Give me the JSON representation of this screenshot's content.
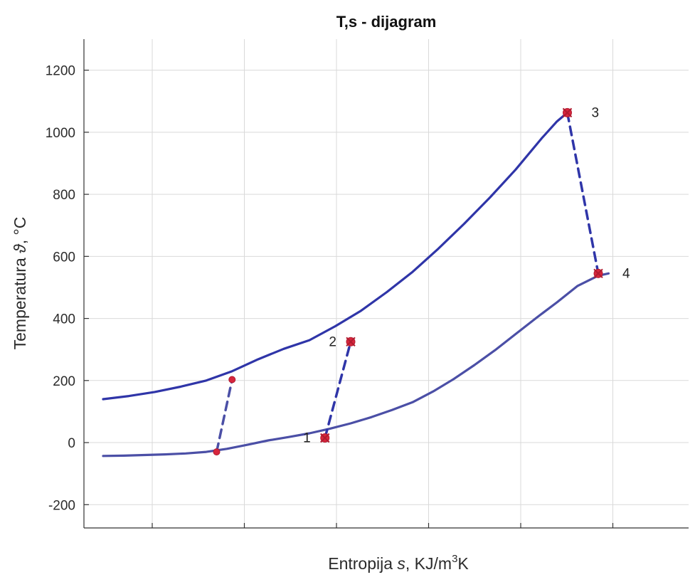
{
  "chart_data": {
    "type": "line",
    "title": "T,s - dijagram",
    "xlabel": {
      "prefix": "Entropija ",
      "symbol": "s",
      "unit": ", KJ/m",
      "sup": "3",
      "suffix": "K"
    },
    "ylabel": {
      "prefix": "Temperatura ",
      "symbol": "ϑ",
      "unit": ", °C"
    },
    "ylim": [
      -275,
      1300
    ],
    "yticks": [
      -200,
      0,
      200,
      400,
      600,
      800,
      1000,
      1200
    ],
    "xlim": [
      0,
      1
    ],
    "xticks_count": 7,
    "grid": true,
    "series": [
      {
        "role": "lower-isobar",
        "color": "#4b4fa6",
        "style": "solid",
        "x": [
          0,
          0.04,
          0.08,
          0.12,
          0.16,
          0.2,
          0.24,
          0.28,
          0.32,
          0.36,
          0.4,
          0.44,
          0.48,
          0.52,
          0.56,
          0.6,
          0.64,
          0.68,
          0.72,
          0.76,
          0.8,
          0.84,
          0.88,
          0.92,
          0.96,
          0.98
        ],
        "y": [
          -43,
          -42,
          -40,
          -38,
          -35,
          -30,
          -20,
          -7,
          7,
          18,
          30,
          45,
          62,
          82,
          105,
          130,
          165,
          205,
          250,
          298,
          350,
          402,
          452,
          505,
          538,
          545
        ]
      },
      {
        "role": "upper-isobar",
        "color": "#2f35a8",
        "style": "solid",
        "x": [
          0,
          0.05,
          0.1,
          0.15,
          0.2,
          0.25,
          0.3,
          0.35,
          0.4,
          0.45,
          0.5,
          0.55,
          0.6,
          0.65,
          0.7,
          0.75,
          0.8,
          0.85,
          0.88,
          0.9
        ],
        "y": [
          140,
          150,
          163,
          180,
          200,
          230,
          268,
          302,
          330,
          375,
          425,
          485,
          550,
          625,
          705,
          790,
          880,
          980,
          1035,
          1063
        ]
      },
      {
        "role": "compression-2-to-1",
        "color": "#2f35a8",
        "style": "dashed",
        "x": [
          0.43,
          0.48
        ],
        "y": [
          15,
          325
        ]
      },
      {
        "role": "expansion-3-to-4",
        "color": "#2f35a8",
        "style": "dashed",
        "x": [
          0.9,
          0.96
        ],
        "y": [
          1063,
          545
        ]
      },
      {
        "role": "left-process",
        "color": "#4b4fa6",
        "style": "dashed",
        "x": [
          0.22,
          0.25
        ],
        "y": [
          -30,
          203
        ]
      }
    ],
    "points": [
      {
        "label": "1",
        "x": 0.43,
        "y": 15,
        "label_side": "left"
      },
      {
        "label": "2",
        "x": 0.48,
        "y": 325,
        "label_side": "left"
      },
      {
        "label": "3",
        "x": 0.9,
        "y": 1063,
        "label_side": "right"
      },
      {
        "label": "4",
        "x": 0.96,
        "y": 545,
        "label_side": "right"
      },
      {
        "label": "",
        "x": 0.22,
        "y": -30,
        "label_side": "none"
      },
      {
        "label": "",
        "x": 0.25,
        "y": 203,
        "label_side": "none"
      }
    ],
    "marker_color": "#d7263d"
  }
}
